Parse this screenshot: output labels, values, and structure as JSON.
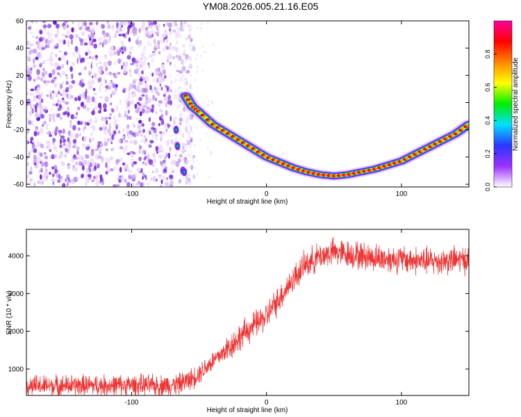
{
  "title": "YM08.2026.005.21.16.E05",
  "colors": {
    "snr_line": "#ee3333",
    "axis": "#000000",
    "noise_light": "#d9bff5",
    "noise_dark": "#7a2ae0"
  },
  "chart_data": [
    {
      "type": "heatmap",
      "title": "YM08.2026.005.21.16.E05",
      "xlabel": "Height of straight line (km)",
      "ylabel": "Frequency (Hz)",
      "xlim": [
        -178,
        150
      ],
      "ylim": [
        -62,
        60
      ],
      "xticks": [
        -100,
        0,
        100
      ],
      "yticks": [
        -60,
        -40,
        -20,
        0,
        20,
        40,
        60
      ],
      "noise_region_x": [
        -178,
        -60
      ],
      "signal_track": {
        "x": [
          -60,
          -55,
          -50,
          -40,
          -30,
          -20,
          -10,
          0,
          10,
          20,
          30,
          40,
          50,
          60,
          70,
          80,
          90,
          100,
          110,
          120,
          130,
          140,
          150
        ],
        "y": [
          5,
          -3,
          -7,
          -16,
          -22,
          -28,
          -34,
          -40,
          -44,
          -48,
          -51,
          -53,
          -54,
          -53,
          -51,
          -49,
          -46,
          -43,
          -38,
          -33,
          -28,
          -23,
          -16
        ]
      },
      "colorbar": {
        "label": "Normalized spectral amplitude",
        "range": [
          0.0,
          1.0
        ],
        "ticks": [
          "0.0",
          "0.2",
          "0.4",
          "0.6",
          "0.8"
        ],
        "colors": [
          "#ffffff",
          "#9c30ff",
          "#2a36ff",
          "#00e0ff",
          "#00ee00",
          "#ffff00",
          "#ff8800",
          "#ff0000",
          "#ff00a0"
        ]
      }
    },
    {
      "type": "line",
      "xlabel": "Height of straight line (km)",
      "ylabel": "SNR (10 * v/v)",
      "xlim": [
        -178,
        150
      ],
      "ylim": [
        300,
        4700
      ],
      "xticks": [
        -100,
        0,
        100
      ],
      "yticks": [
        1000,
        2000,
        3000,
        4000
      ],
      "series": [
        {
          "name": "SNR",
          "trend_x": [
            -178,
            -150,
            -100,
            -80,
            -65,
            -55,
            -45,
            -30,
            -15,
            0,
            10,
            20,
            30,
            40,
            50,
            60,
            70,
            80,
            100,
            120,
            150
          ],
          "trend_y": [
            550,
            560,
            570,
            560,
            600,
            750,
            1050,
            1500,
            2000,
            2400,
            2900,
            3400,
            3800,
            4000,
            4100,
            4050,
            4000,
            3950,
            3900,
            3850,
            3900
          ],
          "noise_amplitude": 250
        }
      ]
    }
  ]
}
